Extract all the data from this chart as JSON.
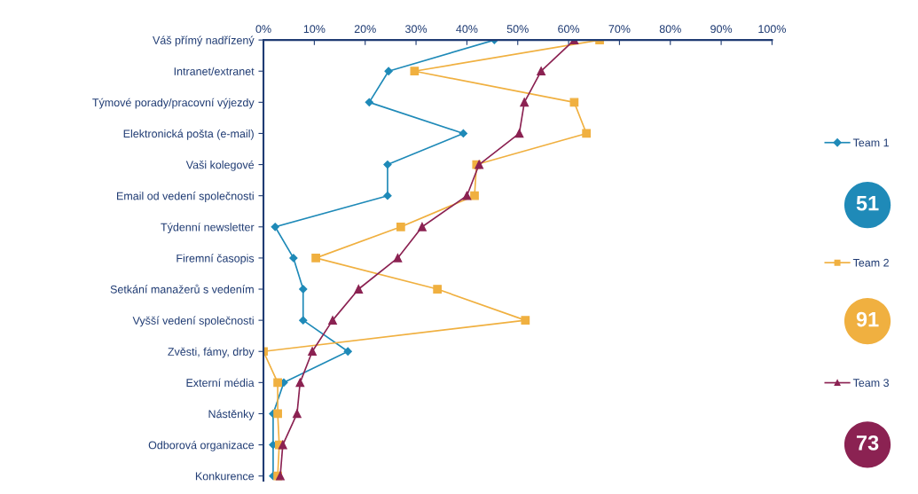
{
  "chart_data": {
    "type": "line",
    "orientation": "horizontal",
    "categories": [
      "Váš přímý nadřízený",
      "Intranet/extranet",
      "Týmové porady/pracovní výjezdy",
      "Elektronická pošta (e-mail)",
      "Vaši kolegové",
      "Email od vedení společnosti",
      "Týdenní newsletter",
      "Firemní časopis",
      "Setkání manažerů s vedením",
      "Vyšší vedení společnosti",
      "Zvěsti, fámy, drby",
      "Externí média",
      "Nástěnky",
      "Odborová organizace",
      "Konkurence"
    ],
    "series": [
      {
        "name": "Team 1",
        "color": "#1f8ab8",
        "marker": "diamond",
        "values": [
          45.4,
          24.6,
          20.8,
          39.3,
          24.4,
          24.4,
          2.3,
          5.9,
          7.8,
          7.8,
          16.6,
          4.0,
          1.9,
          1.9,
          1.9
        ]
      },
      {
        "name": "Team 2",
        "color": "#f0b040",
        "marker": "square",
        "values": [
          66.1,
          29.7,
          61.1,
          63.5,
          41.9,
          41.5,
          27.0,
          10.3,
          34.2,
          51.5,
          0,
          2.8,
          2.8,
          3.1,
          2.8
        ]
      },
      {
        "name": "Team 3",
        "color": "#8b2252",
        "marker": "triangle",
        "values": [
          61.1,
          54.6,
          51.3,
          50.3,
          42.4,
          40.0,
          31.2,
          26.4,
          18.7,
          13.6,
          9.6,
          7.2,
          6.6,
          3.8,
          3.3
        ]
      }
    ],
    "xlim": [
      0,
      100
    ],
    "xticks": [
      {
        "value": 0,
        "label": "0%"
      },
      {
        "value": 10,
        "label": "10%"
      },
      {
        "value": 20,
        "label": "20%"
      },
      {
        "value": 30,
        "label": "30%"
      },
      {
        "value": 40,
        "label": "40%"
      },
      {
        "value": 50,
        "label": "50%"
      },
      {
        "value": 60,
        "label": "60%"
      },
      {
        "value": 70,
        "label": "70%"
      },
      {
        "value": 80,
        "label": "80%"
      },
      {
        "value": 90,
        "label": "90%"
      },
      {
        "value": 100,
        "label": "100%"
      }
    ],
    "annotations": [
      "51",
      "91",
      "73"
    ],
    "legend": "right",
    "grid": false
  }
}
